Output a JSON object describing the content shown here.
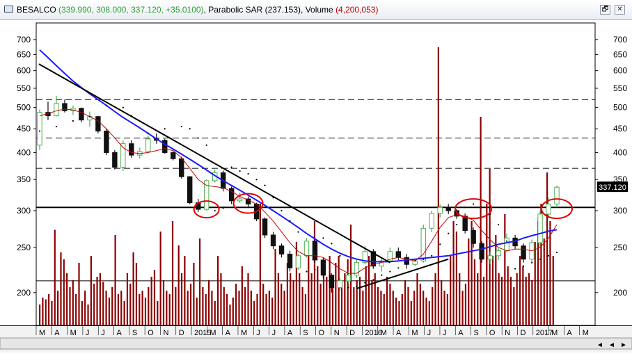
{
  "window": {
    "symbol": "BESALCO",
    "ohlc_text": "(339.990, 308.000, 337.120, +35.0100)",
    "indicator_text": "Parabolic SAR (237.153)",
    "volume_label": "Volume",
    "volume_text": "(4,200,053)",
    "restore_glyph": "🗗",
    "close_glyph": "✕"
  },
  "colors": {
    "price_green": "#2e9e2e",
    "indicator_green": "#2e9e2e",
    "volume_red": "#c00000",
    "up_candle": "#4caf50",
    "down_candle": "#111111",
    "ma_fast": "#cc0000",
    "ma_slow": "#1a1aff",
    "volume_bar": "#8b0000",
    "price_box": "#000000"
  },
  "chart_data": {
    "type": "candlestick",
    "y_scale": "log",
    "y_ticks": [
      700,
      650,
      600,
      550,
      500,
      450,
      400,
      350,
      300,
      250,
      200
    ],
    "ylim": [
      170,
      760
    ],
    "last_price_label": "337.120",
    "x_month_labels": [
      "M",
      "A",
      "M",
      "J",
      "J",
      "A",
      "S",
      "O",
      "N",
      "D",
      "2015",
      "M",
      "A",
      "M",
      "J",
      "J",
      "A",
      "S",
      "O",
      "N",
      "D",
      "2016",
      "M",
      "A",
      "M",
      "J",
      "J",
      "A",
      "S",
      "O",
      "N",
      "D",
      "2017",
      "M",
      "A",
      "M"
    ],
    "horizontal_dashed_levels": [
      520,
      430,
      370
    ],
    "horizontal_solid_levels": [
      305,
      212
    ],
    "candles": [
      [
        415,
        495,
        405,
        488
      ],
      [
        488,
        515,
        470,
        480
      ],
      [
        480,
        530,
        478,
        510
      ],
      [
        510,
        520,
        488,
        492
      ],
      [
        492,
        505,
        482,
        498
      ],
      [
        498,
        500,
        465,
        470
      ],
      [
        470,
        490,
        455,
        478
      ],
      [
        478,
        480,
        440,
        445
      ],
      [
        445,
        450,
        395,
        400
      ],
      [
        400,
        405,
        368,
        372
      ],
      [
        372,
        425,
        365,
        418
      ],
      [
        418,
        425,
        390,
        395
      ],
      [
        395,
        410,
        388,
        402
      ],
      [
        402,
        435,
        398,
        428
      ],
      [
        428,
        440,
        418,
        425
      ],
      [
        425,
        428,
        398,
        400
      ],
      [
        400,
        402,
        385,
        388
      ],
      [
        388,
        392,
        352,
        355
      ],
      [
        355,
        356,
        310,
        312
      ],
      [
        312,
        318,
        298,
        302
      ],
      [
        302,
        350,
        300,
        348
      ],
      [
        348,
        368,
        345,
        362
      ],
      [
        362,
        366,
        330,
        335
      ],
      [
        335,
        338,
        310,
        315
      ],
      [
        315,
        328,
        312,
        318
      ],
      [
        318,
        322,
        305,
        310
      ],
      [
        310,
        312,
        285,
        288
      ],
      [
        288,
        290,
        262,
        266
      ],
      [
        266,
        270,
        248,
        252
      ],
      [
        252,
        255,
        238,
        242
      ],
      [
        242,
        246,
        222,
        226
      ],
      [
        226,
        242,
        224,
        240
      ],
      [
        240,
        262,
        238,
        258
      ],
      [
        258,
        260,
        232,
        235
      ],
      [
        235,
        238,
        215,
        218
      ],
      [
        218,
        220,
        200,
        205
      ],
      [
        205,
        215,
        202,
        212
      ],
      [
        212,
        222,
        210,
        218
      ],
      [
        218,
        236,
        215,
        232
      ],
      [
        232,
        252,
        230,
        245
      ],
      [
        245,
        248,
        225,
        228
      ],
      [
        228,
        238,
        222,
        234
      ],
      [
        234,
        250,
        232,
        245
      ],
      [
        245,
        250,
        235,
        238
      ],
      [
        238,
        242,
        225,
        230
      ],
      [
        230,
        236,
        228,
        234
      ],
      [
        234,
        280,
        232,
        275
      ],
      [
        275,
        300,
        270,
        296
      ],
      [
        296,
        310,
        290,
        305
      ],
      [
        305,
        310,
        295,
        300
      ],
      [
        300,
        302,
        288,
        292
      ],
      [
        292,
        296,
        268,
        272
      ],
      [
        272,
        276,
        250,
        255
      ],
      [
        255,
        258,
        232,
        236
      ],
      [
        236,
        245,
        230,
        240
      ],
      [
        240,
        250,
        235,
        246
      ],
      [
        246,
        268,
        244,
        262
      ],
      [
        262,
        266,
        248,
        252
      ],
      [
        252,
        255,
        232,
        236
      ],
      [
        236,
        260,
        232,
        256
      ],
      [
        256,
        300,
        250,
        295
      ],
      [
        295,
        320,
        290,
        310
      ],
      [
        310,
        340,
        305,
        337
      ]
    ],
    "sar_points": [
      [
        0,
        445
      ],
      [
        2,
        455
      ],
      [
        4,
        468
      ],
      [
        6,
        478
      ],
      [
        8,
        505
      ],
      [
        10,
        500
      ],
      [
        11,
        480
      ],
      [
        13,
        440
      ],
      [
        15,
        450
      ],
      [
        17,
        455
      ],
      [
        18,
        450
      ],
      [
        19,
        430
      ],
      [
        20,
        415
      ],
      [
        21,
        300
      ],
      [
        22,
        304
      ],
      [
        23,
        372
      ],
      [
        24,
        365
      ],
      [
        25,
        360
      ],
      [
        26,
        350
      ],
      [
        27,
        340
      ],
      [
        28,
        320
      ],
      [
        29,
        300
      ],
      [
        30,
        285
      ],
      [
        31,
        270
      ],
      [
        32,
        222
      ],
      [
        33,
        224
      ],
      [
        34,
        262
      ],
      [
        35,
        255
      ],
      [
        36,
        240
      ],
      [
        37,
        205
      ],
      [
        38,
        206
      ],
      [
        39,
        210
      ],
      [
        40,
        213
      ],
      [
        41,
        218
      ],
      [
        42,
        222
      ],
      [
        43,
        226
      ],
      [
        44,
        230
      ],
      [
        45,
        234
      ],
      [
        46,
        236
      ],
      [
        47,
        240
      ],
      [
        48,
        254
      ],
      [
        49,
        268
      ],
      [
        50,
        280
      ],
      [
        51,
        305
      ],
      [
        52,
        310
      ],
      [
        53,
        305
      ],
      [
        54,
        295
      ],
      [
        55,
        280
      ],
      [
        56,
        258
      ],
      [
        57,
        225
      ],
      [
        58,
        228
      ],
      [
        59,
        232
      ],
      [
        60,
        236
      ],
      [
        61,
        240
      ],
      [
        62,
        244
      ]
    ],
    "ma_fast": [
      480,
      485,
      492,
      496,
      494,
      488,
      478,
      468,
      450,
      430,
      410,
      400,
      398,
      400,
      404,
      408,
      404,
      390,
      370,
      350,
      340,
      338,
      336,
      330,
      322,
      316,
      310,
      298,
      285,
      270,
      256,
      245,
      240,
      240,
      238,
      232,
      225,
      220,
      220,
      226,
      230,
      232,
      236,
      238,
      236,
      234,
      242,
      258,
      276,
      290,
      294,
      292,
      286,
      272,
      260,
      250,
      246,
      248,
      248,
      246,
      250,
      262,
      280
    ],
    "ma_slow": [
      665,
      640,
      615,
      592,
      570,
      552,
      535,
      520,
      505,
      490,
      476,
      464,
      452,
      440,
      428,
      417,
      407,
      397,
      387,
      377,
      367,
      357,
      348,
      340,
      332,
      324,
      316,
      308,
      300,
      292,
      284,
      276,
      268,
      261,
      254,
      248,
      243,
      239,
      236,
      234,
      233,
      233,
      233,
      234,
      235,
      236,
      237,
      238,
      239,
      240,
      242,
      244,
      246,
      248,
      251,
      254,
      256,
      258,
      262,
      265,
      268,
      271,
      273
    ],
    "volume_bars": [
      12,
      16,
      15,
      18,
      14,
      55,
      20,
      42,
      38,
      30,
      22,
      26,
      18,
      36,
      14,
      20,
      12,
      40,
      24,
      28,
      30,
      25,
      20,
      16,
      22,
      52,
      18,
      20,
      14,
      30,
      24,
      42,
      36,
      18,
      20,
      16,
      22,
      28,
      32,
      14,
      54,
      26,
      20,
      18,
      60,
      22,
      46,
      30,
      40,
      20,
      24,
      36,
      16,
      50,
      22,
      18,
      26,
      20,
      14,
      40,
      30,
      22,
      18,
      12,
      16,
      24,
      20,
      34,
      22,
      30,
      20,
      14,
      18,
      70,
      24,
      18,
      20,
      16,
      44,
      30,
      24,
      20,
      36,
      30,
      26,
      48,
      30,
      22,
      18,
      40,
      30,
      60,
      34,
      24,
      30,
      28,
      40,
      26,
      36,
      40,
      24,
      30,
      38,
      58,
      22,
      26,
      28,
      20,
      34,
      40,
      26,
      30,
      22,
      20,
      18,
      28,
      24,
      20,
      16,
      14,
      18,
      26,
      22,
      14,
      20,
      30,
      24,
      20,
      16,
      14,
      22,
      30,
      160,
      26,
      20,
      18,
      40,
      60,
      54,
      30,
      20,
      24,
      50,
      60,
      38,
      30,
      120,
      28,
      70,
      90,
      40,
      52,
      30,
      28,
      64,
      34,
      28,
      22,
      30,
      40,
      34,
      28,
      30,
      26,
      48,
      60,
      70,
      50,
      88,
      60,
      40
    ],
    "volume_max": 160
  }
}
